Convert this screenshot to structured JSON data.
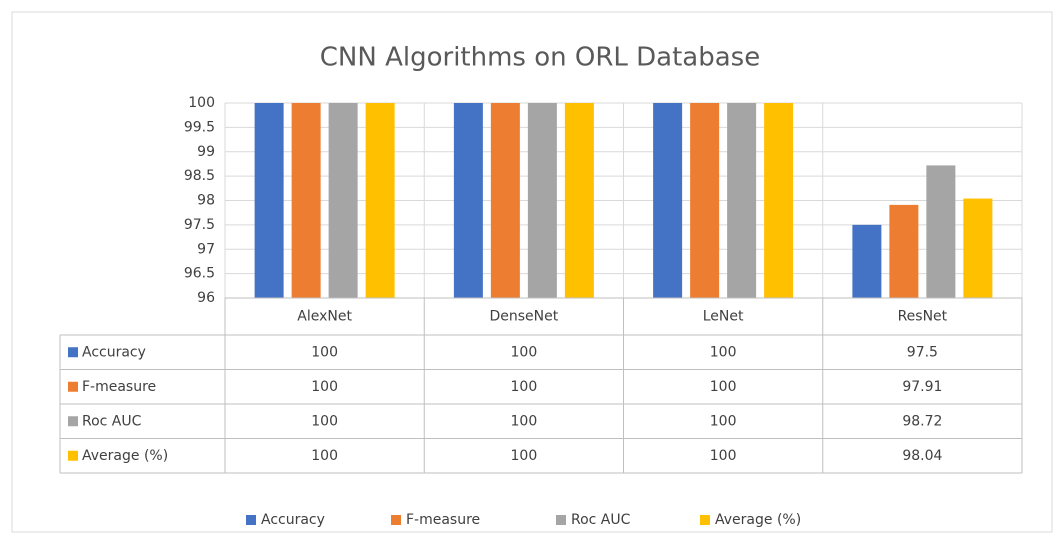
{
  "chart_data": {
    "type": "bar",
    "title": "CNN Algorithms on ORL Database",
    "categories": [
      "AlexNet",
      "DenseNet",
      "LeNet",
      "ResNet"
    ],
    "series": [
      {
        "name": "Accuracy",
        "color": "#4472c4",
        "values": [
          100,
          100,
          100,
          97.5
        ]
      },
      {
        "name": "F-measure",
        "color": "#ed7d31",
        "values": [
          100,
          100,
          100,
          97.91
        ]
      },
      {
        "name": "Roc AUC",
        "color": "#a5a5a5",
        "values": [
          100,
          100,
          100,
          98.72
        ]
      },
      {
        "name": "Average (%)",
        "color": "#ffc000",
        "values": [
          100,
          100,
          100,
          98.04
        ]
      }
    ],
    "ylim": [
      96,
      100
    ],
    "yticks": [
      96,
      96.5,
      97,
      97.5,
      98,
      98.5,
      99,
      99.5,
      100
    ],
    "grid": true,
    "data_table": true,
    "legend": "bottom"
  }
}
